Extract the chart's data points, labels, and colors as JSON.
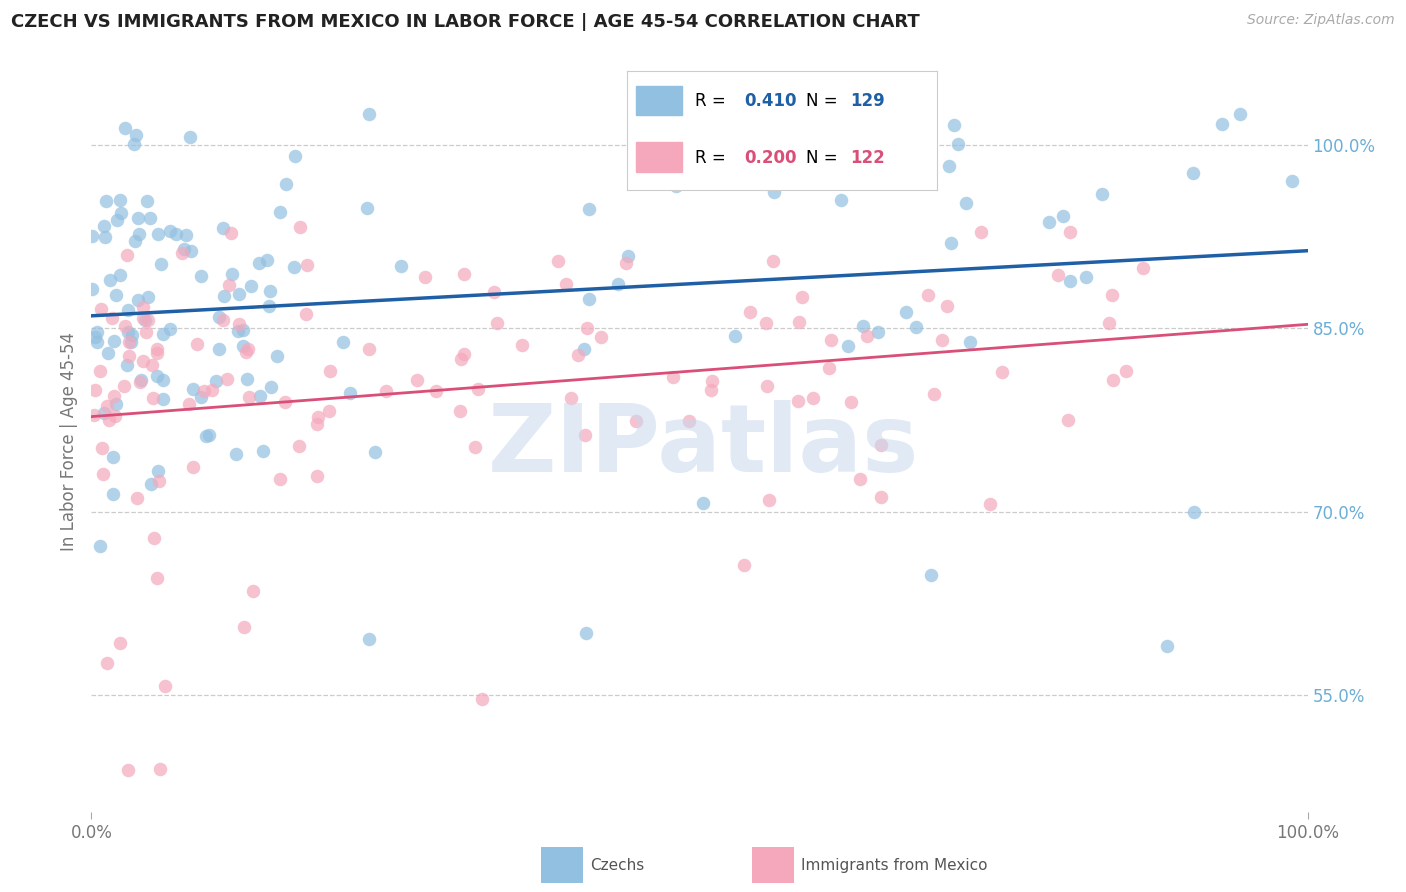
{
  "title": "CZECH VS IMMIGRANTS FROM MEXICO IN LABOR FORCE | AGE 45-54 CORRELATION CHART",
  "source": "Source: ZipAtlas.com",
  "ylabel": "In Labor Force | Age 45-54",
  "xlim": [
    0.0,
    1.0
  ],
  "ylim": [
    0.455,
    1.06
  ],
  "yticks": [
    0.55,
    0.7,
    0.85,
    1.0
  ],
  "ytick_labels": [
    "55.0%",
    "70.0%",
    "85.0%",
    "100.0%"
  ],
  "xticks": [
    0.0,
    1.0
  ],
  "xtick_labels": [
    "0.0%",
    "100.0%"
  ],
  "czech_R": 0.41,
  "czech_N": 129,
  "mexico_R": 0.2,
  "mexico_N": 122,
  "blue_dot_color": "#92c0e0",
  "blue_line_color": "#1f5fa6",
  "pink_dot_color": "#f5a8bc",
  "pink_line_color": "#d94f78",
  "grid_color": "#cccccc",
  "grid_style": "--",
  "title_color": "#222222",
  "right_label_color": "#6baed6",
  "watermark_color": "#c8d8ec",
  "background_color": "#ffffff",
  "bottom_legend_color": "#555555"
}
